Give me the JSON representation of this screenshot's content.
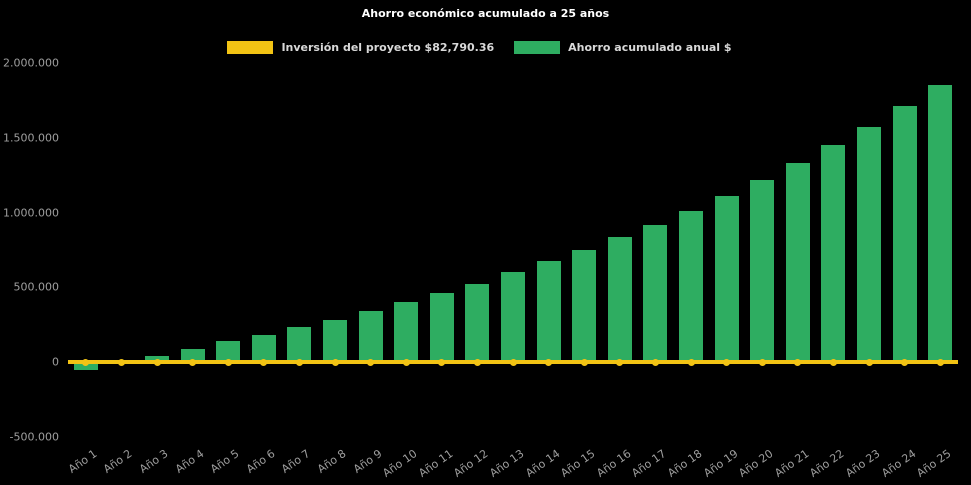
{
  "chart_data": {
    "type": "bar",
    "title": "Ahorro económico acumulado a 25 años",
    "xlabel": "",
    "ylabel": "",
    "legend_position": "top",
    "grid": false,
    "background_color": "#000000",
    "categories": [
      "Año 1",
      "Año 2",
      "Año 3",
      "Año 4",
      "Año 5",
      "Año 6",
      "Año 7",
      "Año 8",
      "Año 9",
      "Año 10",
      "Año 11",
      "Año 12",
      "Año 13",
      "Año 14",
      "Año 15",
      "Año 16",
      "Año 17",
      "Año 18",
      "Año 19",
      "Año 20",
      "Año 21",
      "Año 22",
      "Año 23",
      "Año 24",
      "Año 25"
    ],
    "series": [
      {
        "name": "Inversión del proyecto $82,790.36",
        "type": "line",
        "color": "#F2C314",
        "value": 0,
        "investment_amount_label": "$82,790.36"
      },
      {
        "name": "Ahorro acumulado anual $",
        "type": "bar",
        "color": "#2EAD61",
        "values": [
          -50000,
          10000,
          40000,
          90000,
          140000,
          185000,
          235000,
          285000,
          340000,
          400000,
          465000,
          525000,
          600000,
          675000,
          750000,
          835000,
          915000,
          1010000,
          1110000,
          1215000,
          1330000,
          1450000,
          1575000,
          1710000,
          1855000
        ]
      }
    ],
    "y_axis": {
      "min": -500000,
      "max": 2000000,
      "tick_step": 500000,
      "ticks": [
        {
          "value": 2000000,
          "label": "2.000.000"
        },
        {
          "value": 1500000,
          "label": "1.500.000"
        },
        {
          "value": 1000000,
          "label": "1.000.000"
        },
        {
          "value": 500000,
          "label": "500.000"
        },
        {
          "value": 0,
          "label": "0"
        },
        {
          "value": -500000,
          "label": "-500.000"
        }
      ]
    }
  }
}
